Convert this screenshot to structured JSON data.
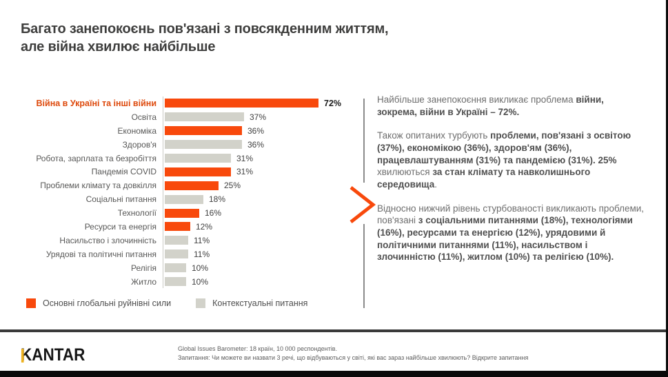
{
  "title": {
    "line1": "Багато занепокоєнь пов'язані з повсякденним життям,",
    "line2": "але війна хвилює найбільше"
  },
  "colors": {
    "accent_orange": "#F8490C",
    "highlight_label_orange": "#DE4A0D",
    "bar_gray": "#D2D2CA",
    "kantar_yellow": "#EDB220"
  },
  "chart_data": {
    "type": "bar",
    "orientation": "horizontal",
    "unit": "%",
    "xlim": [
      0,
      100
    ],
    "grid": false,
    "legend_position": "bottom",
    "categories": [
      "Війна в Україні та інші війни",
      "Освіта",
      "Економіка",
      "Здоров'я",
      "Робота, зарплата та безробіття",
      "Пандемія COVID",
      "Проблеми клімату та довкілля",
      "Соціальні питання",
      "Технології",
      "Ресурси та енергія",
      "Насильство і злочинність",
      "Урядові та політичні питання",
      "Релігія",
      "Житло"
    ],
    "values": [
      72,
      37,
      36,
      36,
      31,
      31,
      25,
      18,
      16,
      12,
      11,
      11,
      10,
      10
    ],
    "items": [
      {
        "label": "Війна в Україні та інші війни",
        "value": 72,
        "display": "72%",
        "group": "disruptive",
        "highlight": true
      },
      {
        "label": "Освіта",
        "value": 37,
        "display": "37%",
        "group": "contextual",
        "highlight": false
      },
      {
        "label": "Економіка",
        "value": 36,
        "display": "36%",
        "group": "disruptive",
        "highlight": false
      },
      {
        "label": "Здоров'я",
        "value": 36,
        "display": "36%",
        "group": "contextual",
        "highlight": false
      },
      {
        "label": "Робота, зарплата та безробіття",
        "value": 31,
        "display": "31%",
        "group": "contextual",
        "highlight": false
      },
      {
        "label": "Пандемія COVID",
        "value": 31,
        "display": "31%",
        "group": "disruptive",
        "highlight": false
      },
      {
        "label": "Проблеми клімату та довкілля",
        "value": 25,
        "display": "25%",
        "group": "disruptive",
        "highlight": false
      },
      {
        "label": "Соціальні питання",
        "value": 18,
        "display": "18%",
        "group": "contextual",
        "highlight": false
      },
      {
        "label": "Технології",
        "value": 16,
        "display": "16%",
        "group": "disruptive",
        "highlight": false
      },
      {
        "label": "Ресурси та енергія",
        "value": 12,
        "display": "12%",
        "group": "disruptive",
        "highlight": false
      },
      {
        "label": "Насильство і злочинність",
        "value": 11,
        "display": "11%",
        "group": "contextual",
        "highlight": false
      },
      {
        "label": "Урядові та політичні питання",
        "value": 11,
        "display": "11%",
        "group": "contextual",
        "highlight": false
      },
      {
        "label": "Релігія",
        "value": 10,
        "display": "10%",
        "group": "contextual",
        "highlight": false
      },
      {
        "label": "Житло",
        "value": 10,
        "display": "10%",
        "group": "contextual",
        "highlight": false
      }
    ]
  },
  "legend": {
    "items": [
      {
        "label": "Основні глобальні руйнівні сили",
        "group": "disruptive"
      },
      {
        "label": "Контекстуальні питання",
        "group": "contextual"
      }
    ]
  },
  "insights": {
    "paragraphs": [
      {
        "segments": [
          {
            "text": "Найбільше занепокоєння викликає проблема ",
            "bold": false
          },
          {
            "text": "війни, зокрема, війни в Україні – 72%.",
            "bold": true
          }
        ]
      },
      {
        "segments": [
          {
            "text": "Також опитаних турбують ",
            "bold": false
          },
          {
            "text": "проблеми, пов'язані з освітою (37%), економікою (36%), здоров'ям (36%), працевлаштуванням (31%) та пандемією (31%). 25%",
            "bold": true
          },
          {
            "text": " хвилюються ",
            "bold": false
          },
          {
            "text": "за стан клімату та навколишнього середовища",
            "bold": true
          },
          {
            "text": ".",
            "bold": false
          }
        ]
      },
      {
        "segments": [
          {
            "text": "Відносно нижчий рівень стурбованості викликають проблеми, пов'язані ",
            "bold": false
          },
          {
            "text": "з соціальними питаннями (18%), технологіями (16%), ресурсами та енергією (12%), урядовими й політичними питаннями (11%), насильством і злочинністю (11%), житлом (10%) та релігією (10%).",
            "bold": true
          }
        ]
      }
    ]
  },
  "footer": {
    "logo": "KANTAR",
    "source_line1": "Global Issues Barometer: 18 країн, 10 000 респондентів.",
    "source_line2": "Запитання: Чи можете ви назвати 3 речі, що відбуваються у світі, які вас зараз найбільше хвилюють? Відкрите запитання"
  }
}
